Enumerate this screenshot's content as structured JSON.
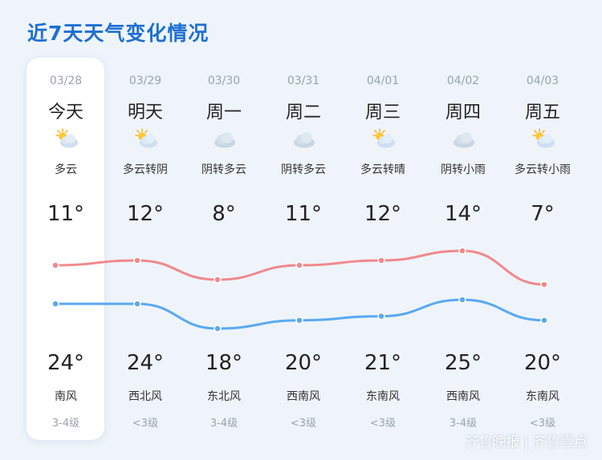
{
  "title": "近7天天气变化情况",
  "days": [
    {
      "date": "03/28",
      "weekday": "今天",
      "icon": "partly-cloudy-icon",
      "desc": "多云",
      "high": "11°",
      "low": "24°",
      "wind": "南风",
      "level": "3-4级"
    },
    {
      "date": "03/29",
      "weekday": "明天",
      "icon": "partly-cloudy-icon",
      "desc": "多云转阴",
      "high": "12°",
      "low": "24°",
      "wind": "西北风",
      "level": "<3级"
    },
    {
      "date": "03/30",
      "weekday": "周一",
      "icon": "cloud-icon",
      "desc": "阴转多云",
      "high": "8°",
      "low": "18°",
      "wind": "东北风",
      "level": "3-4级"
    },
    {
      "date": "03/31",
      "weekday": "周二",
      "icon": "cloud-icon",
      "desc": "阴转多云",
      "high": "11°",
      "low": "20°",
      "wind": "西南风",
      "level": "<3级"
    },
    {
      "date": "04/01",
      "weekday": "周三",
      "icon": "partly-cloudy-icon",
      "desc": "多云转晴",
      "high": "12°",
      "low": "21°",
      "wind": "东南风",
      "level": "<3级"
    },
    {
      "date": "04/02",
      "weekday": "周四",
      "icon": "cloud-icon",
      "desc": "阴转小雨",
      "high": "14°",
      "low": "25°",
      "wind": "西南风",
      "level": "3-4级"
    },
    {
      "date": "04/03",
      "weekday": "周五",
      "icon": "partly-cloudy-icon",
      "desc": "多云转小雨",
      "high": "7°",
      "low": "20°",
      "wind": "东南风",
      "level": "<3级"
    }
  ],
  "colors": {
    "accent": "#1f6fd1",
    "upper_line": "#f2888c",
    "lower_line": "#5aa9f2"
  },
  "watermark": "齐鲁晚报 | 齐鲁壹点"
}
